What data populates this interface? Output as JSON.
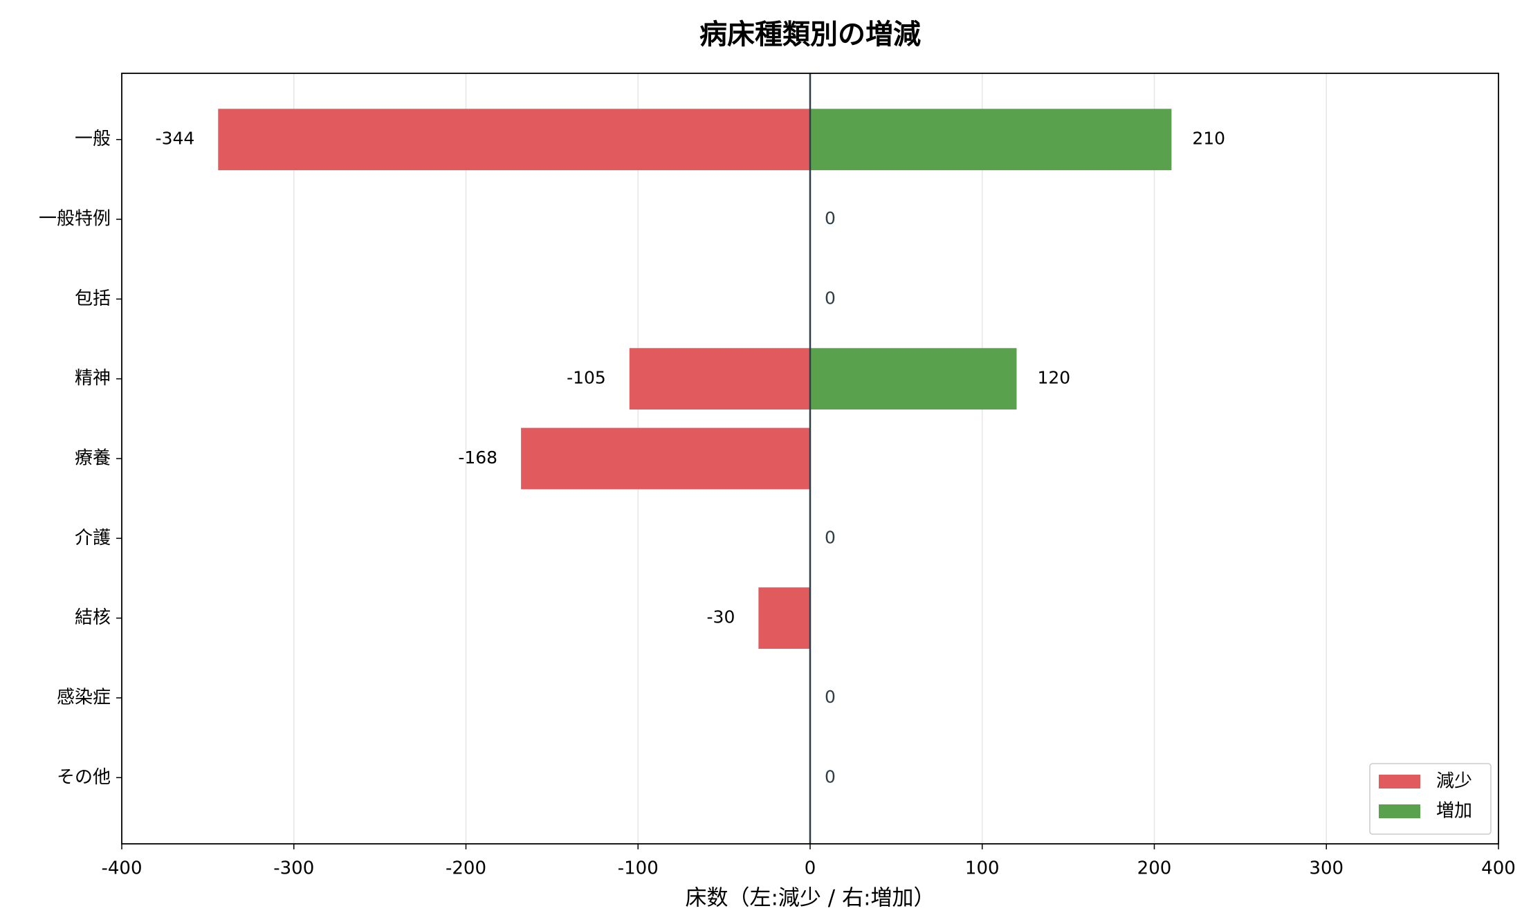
{
  "chart_data": {
    "type": "diverging_bar",
    "title": "病床種類別の増減",
    "x_label": "床数（左:減少 / 右:増加）",
    "categories": [
      "一般",
      "一般特例",
      "包括",
      "精神",
      "療養",
      "介護",
      "結核",
      "感染症",
      "その他"
    ],
    "series": [
      {
        "name": "減少",
        "color": "#e05a5e",
        "values": [
          -344,
          0,
          0,
          -105,
          -168,
          0,
          -30,
          0,
          0
        ]
      },
      {
        "name": "増加",
        "color": "#5aa14e",
        "values": [
          210,
          0,
          0,
          120,
          0,
          0,
          0,
          0,
          0
        ]
      }
    ],
    "xlim": [
      -400,
      400
    ],
    "xticks": [
      -400,
      -300,
      -200,
      -100,
      0,
      100,
      200,
      300,
      400
    ],
    "grid": true,
    "legend": "lower right"
  }
}
